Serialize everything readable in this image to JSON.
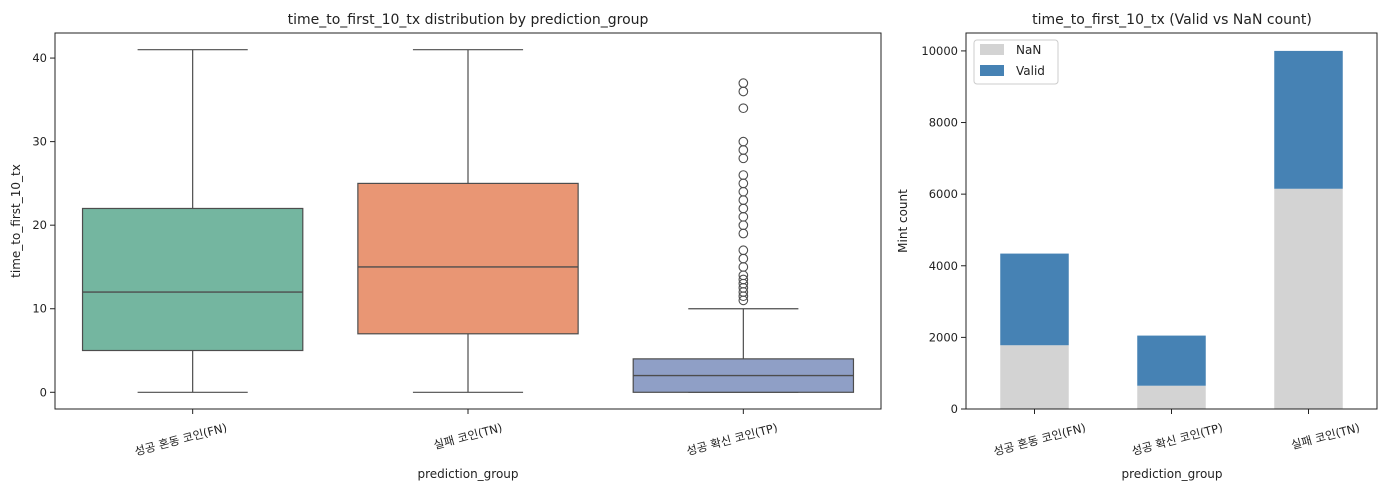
{
  "chart_data": [
    {
      "type": "box",
      "title": "time_to_first_10_tx distribution by prediction_group",
      "xlabel": "prediction_group",
      "ylabel": "time_to_first_10_tx",
      "ylim": [
        -2,
        43
      ],
      "yticks": [
        0,
        10,
        20,
        30,
        40
      ],
      "grid": false,
      "categories": [
        "성공 혼동 코인(FN)",
        "실패 코인(TN)",
        "성공 확신 코인(TP)"
      ],
      "boxes": [
        {
          "category": "성공 혼동 코인(FN)",
          "color": "#74b6a0",
          "whisker_low": 0,
          "q1": 5,
          "median": 12,
          "q3": 22,
          "whisker_high": 41,
          "outliers": []
        },
        {
          "category": "실패 코인(TN)",
          "color": "#e99674",
          "whisker_low": 0,
          "q1": 7,
          "median": 15,
          "q3": 25,
          "whisker_high": 41,
          "outliers": []
        },
        {
          "category": "성공 확신 코인(TP)",
          "color": "#8f9fc6",
          "whisker_low": 0,
          "q1": 0,
          "median": 2,
          "q3": 4,
          "whisker_high": 10,
          "outliers": [
            11,
            11.5,
            12,
            12.5,
            13,
            13.5,
            14,
            15,
            16,
            17,
            19,
            20,
            21,
            22,
            23,
            24,
            25,
            26,
            28,
            29,
            30,
            34,
            36,
            37
          ]
        }
      ]
    },
    {
      "type": "bar",
      "stacked": true,
      "title": "time_to_first_10_tx (Valid vs NaN count)",
      "xlabel": "prediction_group",
      "ylabel": "Mint count",
      "ylim": [
        0,
        10500
      ],
      "yticks": [
        0,
        2000,
        4000,
        6000,
        8000,
        10000
      ],
      "grid": false,
      "legend": "top-left",
      "categories": [
        "성공 혼동 코인(FN)",
        "성공 확신 코인(TP)",
        "실패 코인(TN)"
      ],
      "series": [
        {
          "name": "NaN",
          "color": "#d3d3d3",
          "values": [
            1780,
            650,
            6150
          ]
        },
        {
          "name": "Valid",
          "color": "#4682b4",
          "values": [
            2560,
            1400,
            3850
          ]
        }
      ]
    }
  ]
}
